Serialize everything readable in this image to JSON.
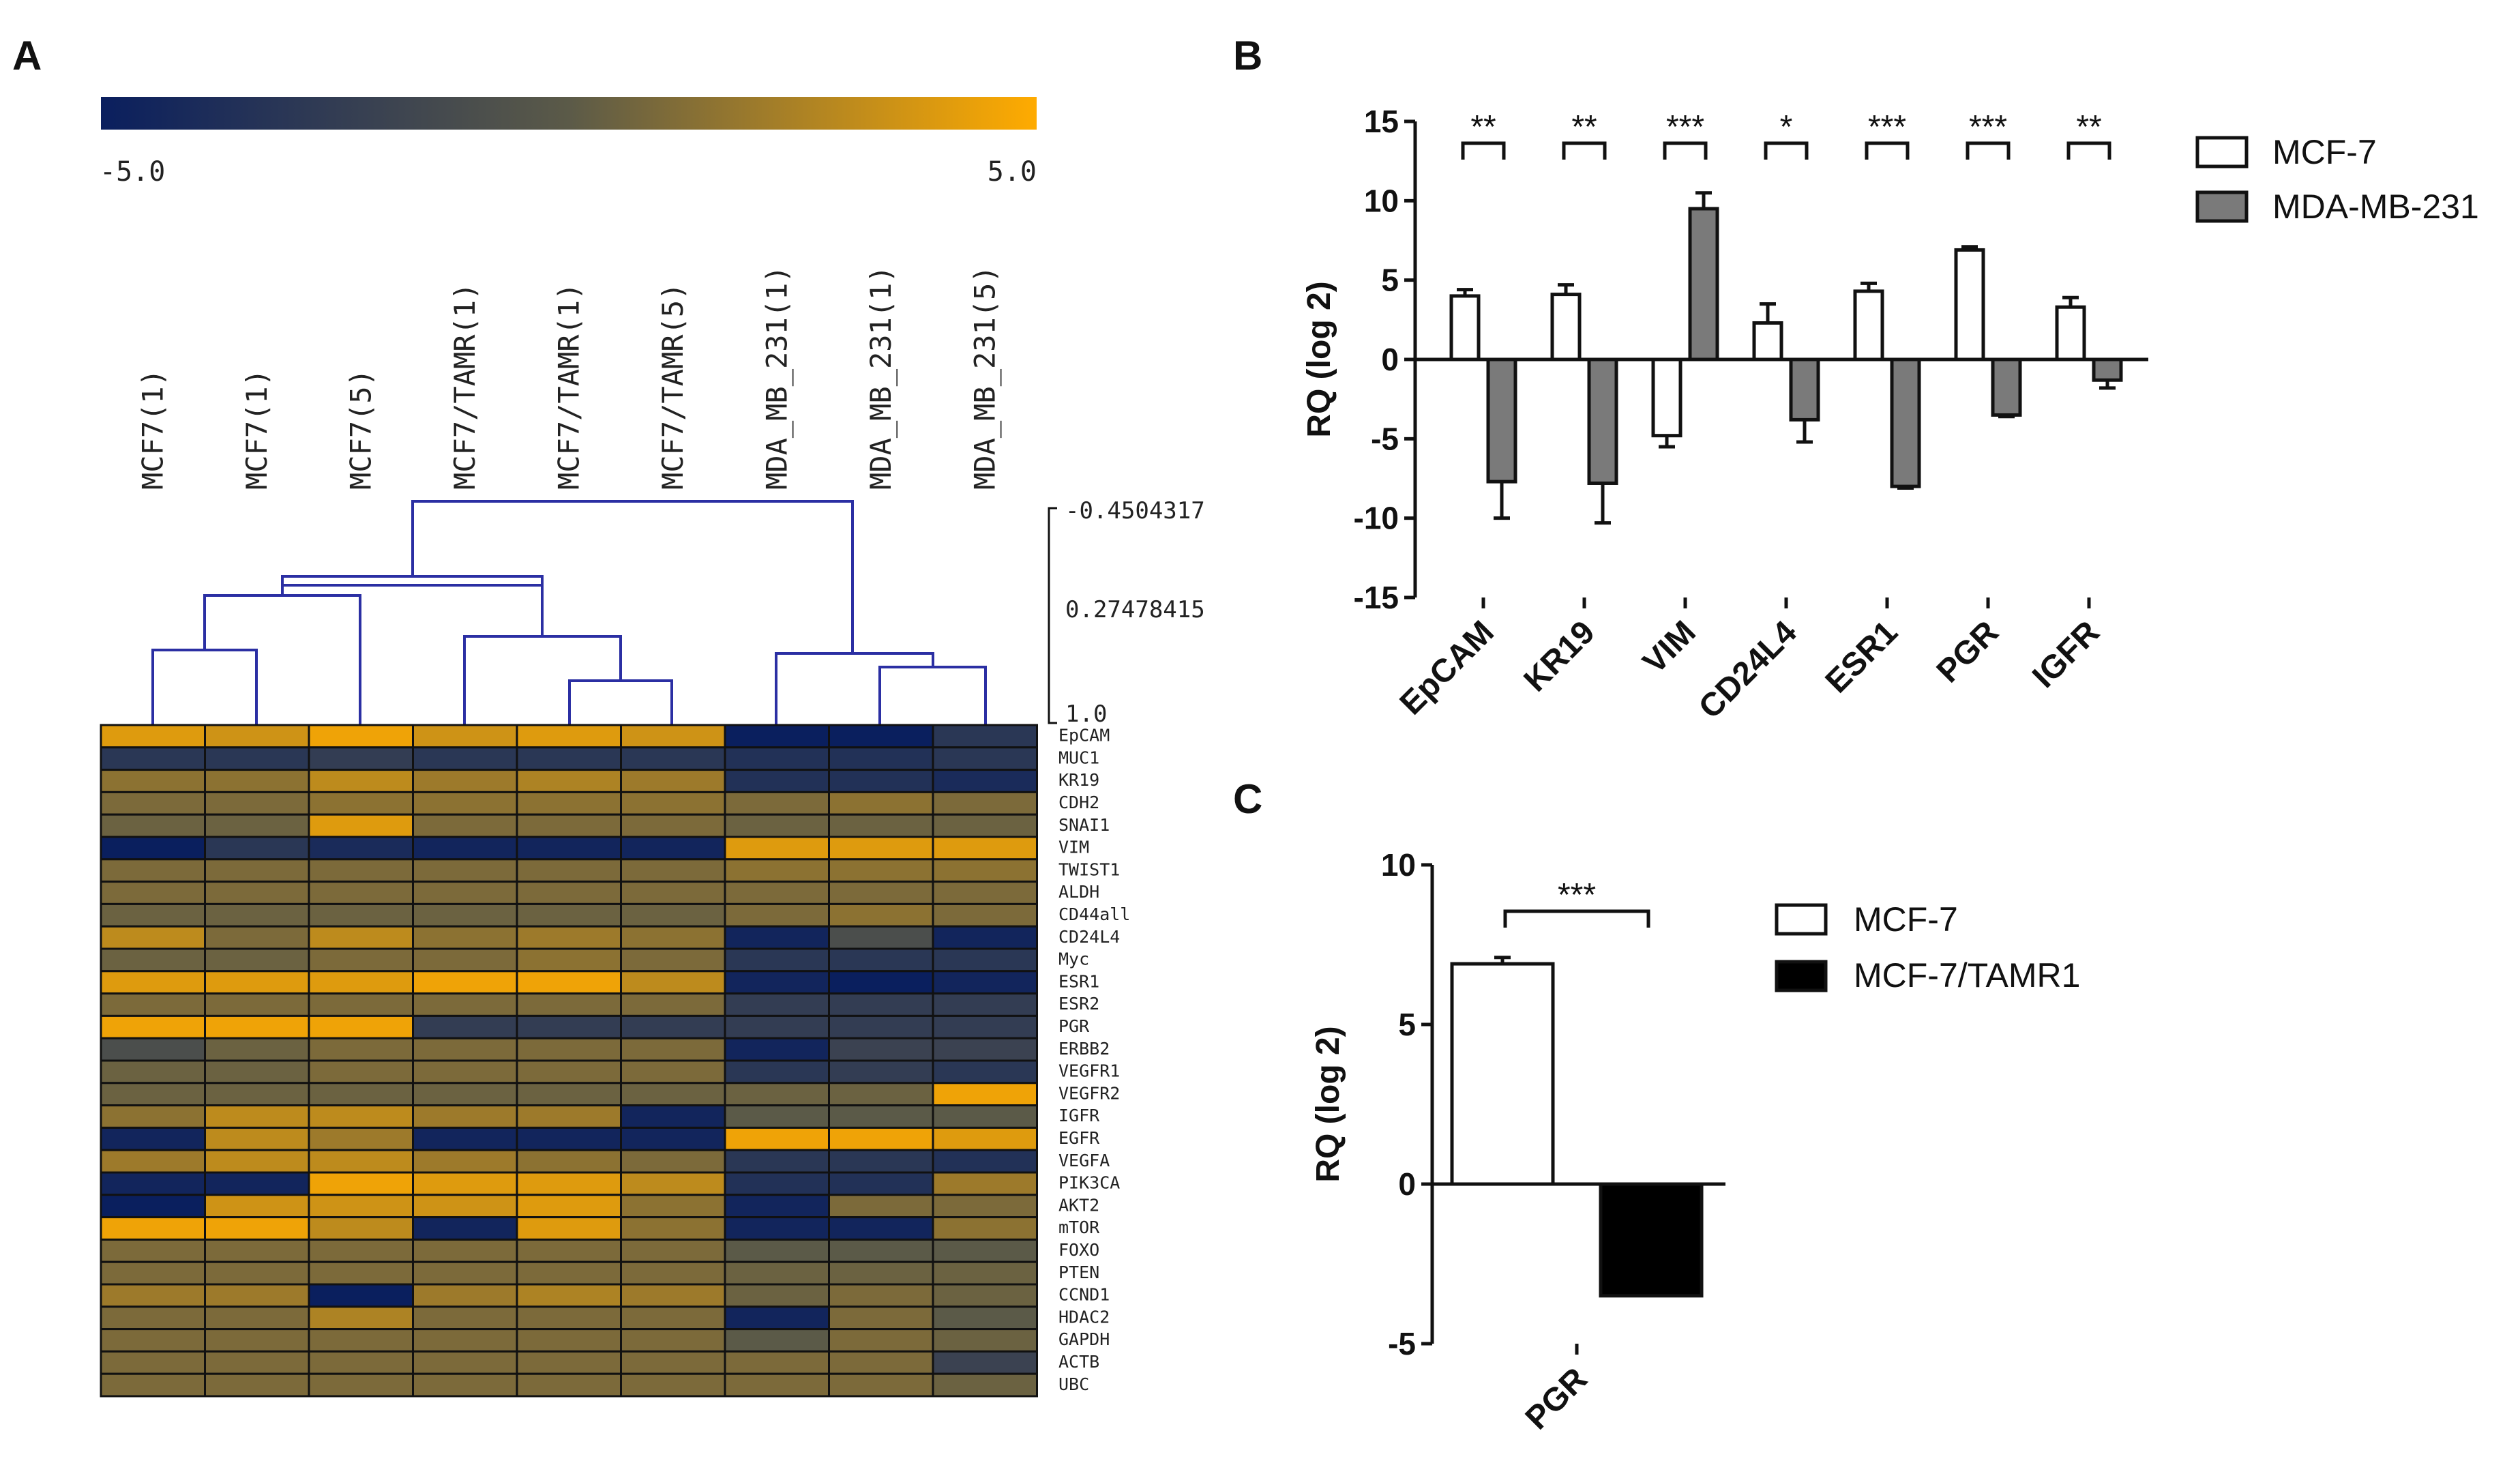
{
  "panels": {
    "a": "A",
    "b": "B",
    "c": "C"
  },
  "colors": {
    "low": "#0a1f5e",
    "mid": "#5b5a48",
    "high": "#ffab00",
    "mcf7": "#ffffff",
    "mda": "#7a7a7a",
    "tamr": "#000000"
  },
  "colorbar": {
    "min_label": "-5.0",
    "max_label": "5.0",
    "min": -5,
    "max": 5
  },
  "heatmap": {
    "samples": [
      "MCF7(1)",
      "MCF7(1)",
      "MCF7(5)",
      "MCF7/TAMR(1)",
      "MCF7/TAMR(1)",
      "MCF7/TAMR(5)",
      "MDA_MB_231(1)",
      "MDA_MB_231(1)",
      "MDA_MB_231(5)"
    ],
    "scale_labels": [
      "-0.4504317",
      "0.27478415",
      "1.0"
    ],
    "genes": [
      "EpCAM",
      "MUC1",
      "KR19",
      "CDH2",
      "SNAI1",
      "VIM",
      "TWIST1",
      "ALDH",
      "CD44all",
      "CD24L4",
      "Myc",
      "ESR1",
      "ESR2",
      "PGR",
      "ERBB2",
      "VEGFR1",
      "VEGFR2",
      "IGFR",
      "EGFR",
      "VEGFA",
      "PIK3CA",
      "AKT2",
      "mTOR",
      "FOXO",
      "PTEN",
      "CCND1",
      "HDAC2",
      "GAPDH",
      "ACTB",
      "UBC"
    ],
    "values": [
      [
        4,
        3.5,
        4.5,
        3.5,
        4,
        3.5,
        -5,
        -5,
        -3
      ],
      [
        -3,
        -3,
        -2.5,
        -3,
        -3,
        -3,
        -3.5,
        -3.5,
        -3
      ],
      [
        1.5,
        1.5,
        3,
        2,
        2.5,
        2,
        -3.5,
        -3.5,
        -4
      ],
      [
        1,
        1,
        1.5,
        1.5,
        1.5,
        1.5,
        1,
        1.5,
        1
      ],
      [
        0.5,
        0.5,
        4,
        1,
        1,
        1,
        0.5,
        0.5,
        0.5
      ],
      [
        -5,
        -3,
        -4,
        -4.5,
        -4.5,
        -4.5,
        4,
        4,
        4
      ],
      [
        1,
        1,
        1,
        1,
        1,
        1,
        1.5,
        1.5,
        1.5
      ],
      [
        1,
        1,
        1,
        1,
        1,
        1,
        1,
        1,
        1
      ],
      [
        0.5,
        0.5,
        0.5,
        0.5,
        0.5,
        0.5,
        1,
        1.5,
        1
      ],
      [
        3,
        1,
        3,
        1.5,
        2,
        1.5,
        -4.5,
        -1,
        -4.5
      ],
      [
        0.5,
        0.5,
        1,
        1,
        1.5,
        1,
        -3,
        -3,
        -3
      ],
      [
        4,
        4,
        4,
        4.5,
        4.5,
        3,
        -4.5,
        -5,
        -4.5
      ],
      [
        1,
        1,
        1,
        1,
        1,
        1,
        -2.5,
        -2.5,
        -2.5
      ],
      [
        4.5,
        4.5,
        4.5,
        -2.5,
        -2.5,
        -2.5,
        -2.5,
        -2.5,
        -2.5
      ],
      [
        -1,
        0.5,
        1,
        1,
        1,
        1,
        -4.5,
        -2,
        -2
      ],
      [
        0.5,
        0.5,
        1,
        1,
        1,
        1,
        -3,
        -2.5,
        -3
      ],
      [
        0.5,
        0.5,
        0.5,
        0.5,
        0.5,
        0.5,
        0.5,
        0.5,
        4.5
      ],
      [
        1.5,
        3,
        3,
        2,
        2,
        -4.5,
        0,
        0,
        0
      ],
      [
        -4.5,
        3,
        2,
        -4.5,
        -4.5,
        -4.5,
        4.5,
        4.5,
        4
      ],
      [
        2,
        3,
        3,
        2,
        1.5,
        1,
        -3,
        -3,
        -3.5
      ],
      [
        -4.5,
        -4.5,
        4.5,
        4,
        4,
        3,
        -3.5,
        -3.5,
        2
      ],
      [
        -5,
        3.5,
        3.5,
        3.5,
        4,
        1.5,
        -4.5,
        1,
        1
      ],
      [
        4.5,
        4.5,
        3,
        -4.5,
        4,
        1.5,
        -4.5,
        -4.5,
        1.5
      ],
      [
        1,
        1,
        1,
        1,
        1,
        1,
        0,
        0,
        0
      ],
      [
        1,
        1,
        1,
        1,
        1,
        1,
        0.5,
        0.5,
        0.5
      ],
      [
        2,
        2,
        -5,
        2,
        2.5,
        2,
        0.5,
        1,
        0.5
      ],
      [
        1,
        1,
        2.5,
        1,
        1,
        1,
        -4.5,
        1,
        0
      ],
      [
        1,
        1,
        1,
        1,
        1,
        1,
        0,
        1,
        0.5
      ],
      [
        1,
        1,
        1,
        1,
        1,
        1,
        1,
        1,
        -2
      ],
      [
        1,
        1,
        1,
        1,
        1,
        1,
        1,
        1,
        0.5
      ]
    ]
  },
  "chart_data": [
    {
      "type": "bar",
      "panel": "B",
      "categories": [
        "EpCAM",
        "KR19",
        "VIM",
        "CD24L4",
        "ESR1",
        "PGR",
        "IGFR"
      ],
      "series": [
        {
          "name": "MCF-7",
          "values": [
            4,
            4.1,
            -4.8,
            2.3,
            4.3,
            6.9,
            3.3
          ],
          "errors": [
            0.4,
            0.6,
            0.7,
            1.2,
            0.5,
            0.2,
            0.6
          ]
        },
        {
          "name": "MDA-MB-231",
          "values": [
            -7.7,
            -7.8,
            9.5,
            -3.8,
            -8,
            -3.5,
            -1.3
          ],
          "errors": [
            2.3,
            2.5,
            1,
            1.4,
            0.1,
            0.1,
            0.5
          ]
        }
      ],
      "significance": [
        "**",
        "**",
        "***",
        "*",
        "***",
        "***",
        "**"
      ],
      "ylabel": "RQ (log 2)",
      "yticks": [
        15,
        10,
        5,
        0,
        -5,
        -10,
        -15
      ],
      "ylim": [
        -15,
        15
      ],
      "legend": "top-right"
    },
    {
      "type": "bar",
      "panel": "C",
      "categories": [
        "PGR"
      ],
      "series": [
        {
          "name": "MCF-7",
          "values": [
            6.9
          ],
          "errors": [
            0.2
          ]
        },
        {
          "name": "MCF-7/TAMR1",
          "values": [
            -3.5
          ],
          "errors": [
            0
          ]
        }
      ],
      "significance": [
        "***"
      ],
      "ylabel": "RQ (log 2)",
      "yticks": [
        10,
        5,
        0,
        -5
      ],
      "ylim": [
        -5,
        10
      ],
      "legend": "top-right"
    }
  ]
}
